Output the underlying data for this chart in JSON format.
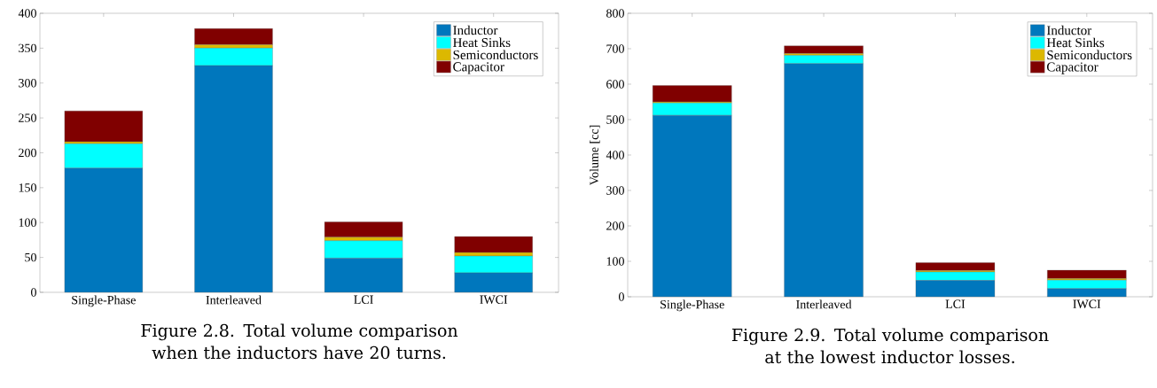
{
  "chart_data": [
    {
      "type": "bar",
      "stacked": true,
      "categories": [
        "Single-Phase",
        "Interleaved",
        "LCI",
        "IWCI"
      ],
      "series": [
        {
          "name": "Inductor",
          "color": "#0077bd",
          "values": [
            178,
            325,
            49,
            28
          ]
        },
        {
          "name": "Heat Sinks",
          "color": "#00ffff",
          "values": [
            35,
            25,
            25,
            24
          ]
        },
        {
          "name": "Semiconductors",
          "color": "#dcb800",
          "values": [
            3,
            5,
            5,
            5
          ]
        },
        {
          "name": "Capacitor",
          "color": "#800000",
          "values": [
            44,
            23,
            22,
            23
          ]
        }
      ],
      "ylim": [
        0,
        400
      ],
      "yticks": [
        0,
        50,
        100,
        150,
        200,
        250,
        300,
        350,
        400
      ],
      "legend": "top right",
      "annotations": [
        "Figure 2.8. Total volume comparison when the inductors have 20 turns."
      ]
    },
    {
      "type": "bar",
      "stacked": true,
      "categories": [
        "Single-Phase",
        "Interleaved",
        "LCI",
        "IWCI"
      ],
      "series": [
        {
          "name": "Inductor",
          "color": "#0077bd",
          "values": [
            512,
            658,
            46,
            23
          ]
        },
        {
          "name": "Heat Sinks",
          "color": "#00ffff",
          "values": [
            35,
            23,
            24,
            24
          ]
        },
        {
          "name": "Semiconductors",
          "color": "#dcb800",
          "values": [
            3,
            5,
            4,
            4
          ]
        },
        {
          "name": "Capacitor",
          "color": "#800000",
          "values": [
            46,
            22,
            22,
            24
          ]
        }
      ],
      "ylabel": "Volume [cc]",
      "ylim": [
        0,
        800
      ],
      "yticks": [
        0,
        100,
        200,
        300,
        400,
        500,
        600,
        700,
        800
      ],
      "legend": "top right",
      "annotations": [
        "Figure 2.9. Total volume comparison at the lowest inductor losses."
      ]
    }
  ]
}
